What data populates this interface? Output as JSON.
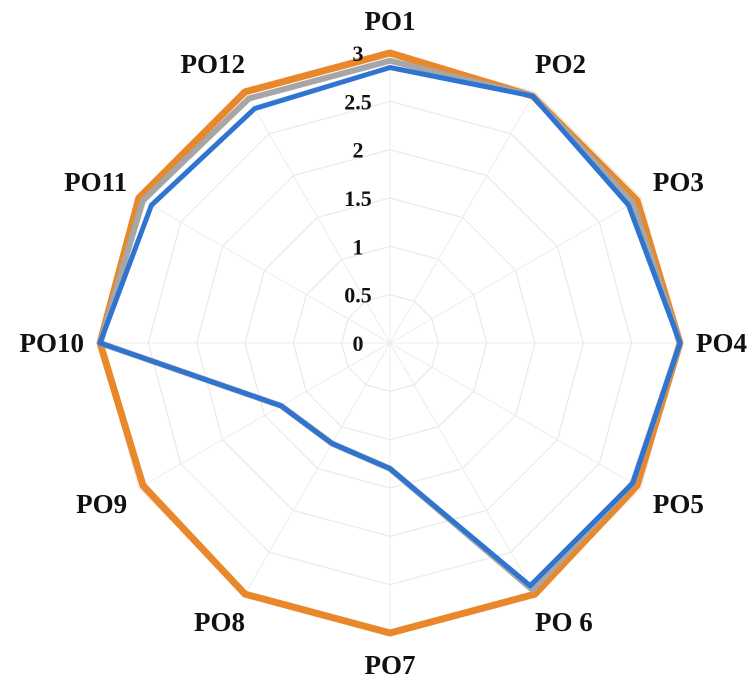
{
  "colors": {
    "series_orange": "#E8882A",
    "series_gray": "#A6A6A6",
    "series_blue": "#2F74D0",
    "grid": "#e9e9e9"
  },
  "chart_data": {
    "type": "radar",
    "categories": [
      "PO1",
      "PO2",
      "PO3",
      "PO4",
      "PO5",
      "PO 6",
      "PO7",
      "PO8",
      "PO9",
      "PO10",
      "PO11",
      "PO12"
    ],
    "rlim": [
      0,
      3
    ],
    "ticks": [
      "0",
      "0.5",
      "1",
      "1.5",
      "2",
      "2.5",
      "3"
    ],
    "tick_values": [
      0,
      0.5,
      1,
      1.5,
      2,
      2.5,
      3
    ],
    "grid": true,
    "legend": "none",
    "series": [
      {
        "color": "#E8882A",
        "values": [
          3.0,
          2.95,
          2.95,
          3.0,
          2.95,
          3.0,
          3.0,
          3.0,
          2.95,
          3.0,
          3.0,
          3.0
        ]
      },
      {
        "color": "#A6A6A6",
        "values": [
          2.92,
          2.95,
          2.9,
          3.0,
          2.9,
          2.95,
          1.3,
          1.2,
          1.3,
          3.0,
          2.95,
          2.92
        ]
      },
      {
        "color": "#2F74D0",
        "values": [
          2.85,
          2.95,
          2.85,
          3.0,
          2.9,
          2.9,
          1.3,
          1.2,
          1.3,
          3.0,
          2.85,
          2.8
        ]
      }
    ]
  }
}
